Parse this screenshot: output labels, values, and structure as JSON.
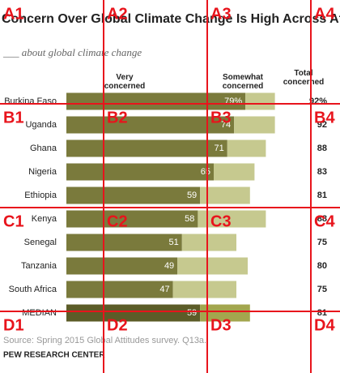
{
  "chart_data": {
    "type": "stacked-bar-horizontal",
    "title": "Concern Over Global Climate Change Is High Across Africa",
    "subtitle": "___ about global climate change",
    "categories": [
      "Burkina Faso",
      "Uganda",
      "Ghana",
      "Nigeria",
      "Ethiopia",
      "Kenya",
      "Senegal",
      "Tanzania",
      "South Africa",
      "MEDIAN"
    ],
    "series": [
      {
        "name": "Very concerned",
        "color": "#7a7a3c",
        "median_color": "#5c5c28",
        "values": [
          79,
          74,
          71,
          65,
          59,
          58,
          51,
          49,
          47,
          59
        ],
        "value_labels": [
          "79%",
          "74",
          "71",
          "65",
          "59",
          "58",
          "51",
          "49",
          "47",
          "59"
        ]
      },
      {
        "name": "Somewhat concerned",
        "color": "#c6c98f",
        "median_color": "#a3a64e",
        "values": [
          13,
          18,
          17,
          18,
          22,
          30,
          24,
          31,
          28,
          22
        ]
      }
    ],
    "totals": {
      "name": "Total concerned",
      "values": [
        92,
        92,
        88,
        83,
        81,
        88,
        75,
        80,
        75,
        81
      ],
      "value_labels": [
        "92%",
        "92",
        "88",
        "83",
        "81",
        "88",
        "75",
        "80",
        "75",
        "81"
      ]
    },
    "xlim": [
      0,
      100
    ],
    "source": "Source: Spring 2015 Global Attitudes survey. Q13a.",
    "footer": "PEW RESEARCH CENTER"
  },
  "overlay_labels": [
    "A1",
    "A2",
    "A3",
    "A4",
    "B1",
    "B2",
    "B3",
    "B4",
    "C1",
    "C2",
    "C3",
    "C4",
    "D1",
    "D2",
    "D3",
    "D4"
  ]
}
